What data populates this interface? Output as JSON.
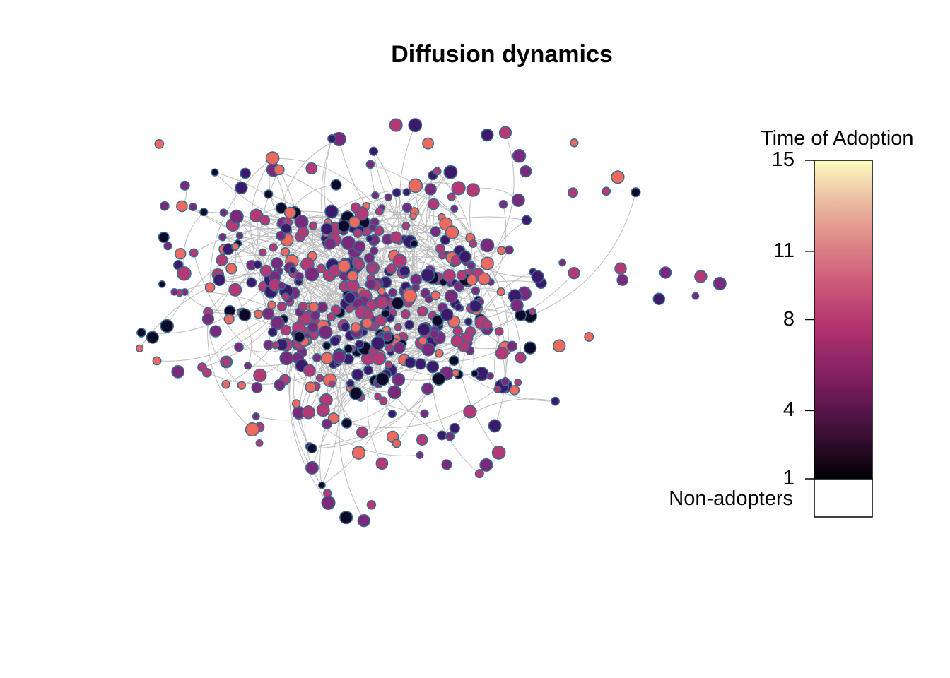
{
  "title": "Diffusion dynamics",
  "legend": {
    "title": "Time of Adoption",
    "ticks": [
      15,
      11,
      8,
      4,
      1
    ],
    "range": [
      1,
      15
    ],
    "non_adopters_label": "Non-adopters",
    "non_adopters_color": "#ffffff",
    "palette": [
      "#000004",
      "#3b0f36",
      "#7a1d5f",
      "#b3336f",
      "#d2617c",
      "#e2968f",
      "#efc9a8",
      "#fbfcbf"
    ]
  },
  "network": {
    "node_border_color": "#3b6a8f",
    "edge_color": "#bdbdbd",
    "node_colors_by_time": {
      "early": "#0d0a29",
      "mid_early": "#3b1a6b",
      "mid": "#7a2a7a",
      "mid_late": "#b33a74",
      "late": "#ef6a5e"
    }
  }
}
